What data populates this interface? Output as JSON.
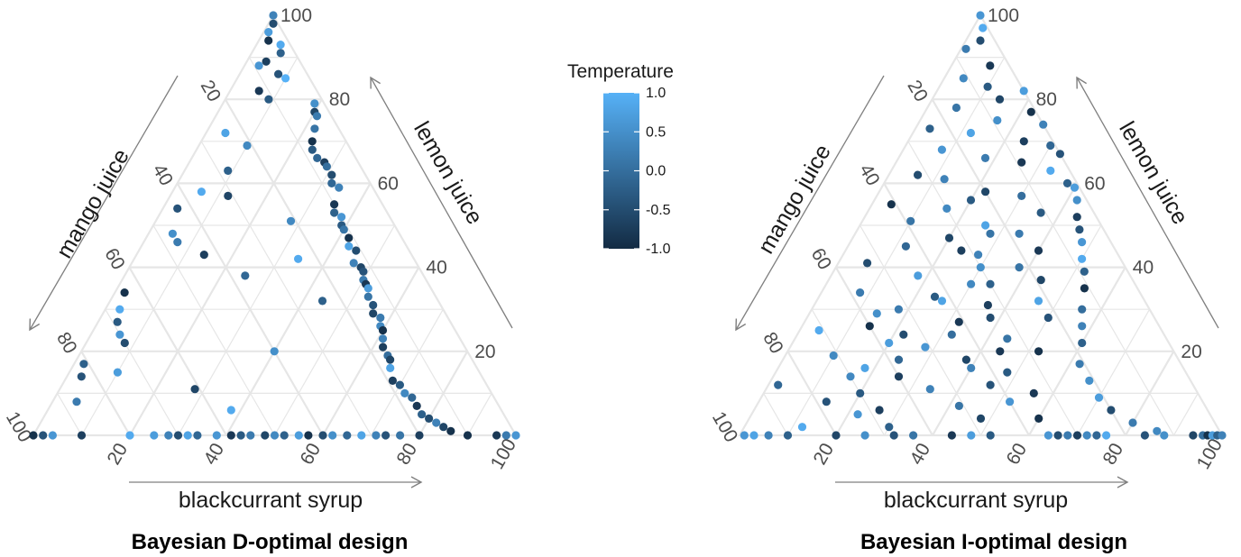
{
  "chart_data": [
    {
      "type": "ternary-scatter",
      "title": "Bayesian D-optimal design",
      "axes": {
        "top": "lemon juice",
        "left": "mango juice",
        "right": "blackcurrant syrup"
      },
      "tick_labels": [
        "20",
        "40",
        "60",
        "80",
        "100"
      ],
      "point_fields": [
        "lemon juice",
        "blackcurrant syrup",
        "temperature"
      ],
      "points": [
        [
          100,
          0,
          0.3
        ],
        [
          98,
          1,
          -0.5
        ],
        [
          96,
          1,
          0.7
        ],
        [
          94,
          2,
          -0.9
        ],
        [
          93,
          5,
          0.9
        ],
        [
          91,
          6,
          -0.2
        ],
        [
          89,
          4,
          -0.7
        ],
        [
          88,
          3,
          0.6
        ],
        [
          86,
          8,
          -0.4
        ],
        [
          85,
          10,
          1.0
        ],
        [
          82,
          6,
          -0.8
        ],
        [
          80,
          9,
          -0.3
        ],
        [
          79,
          19,
          0.5
        ],
        [
          77,
          20,
          -0.6
        ],
        [
          76,
          21,
          0.2
        ],
        [
          73,
          22,
          0.1
        ],
        [
          72,
          4,
          0.8
        ],
        [
          70,
          23,
          -0.9
        ],
        [
          69,
          10,
          0.4
        ],
        [
          68,
          24,
          -0.3
        ],
        [
          66,
          26,
          -0.1
        ],
        [
          65,
          28,
          -0.7
        ],
        [
          64,
          29,
          0.0
        ],
        [
          63,
          9,
          -0.2
        ],
        [
          62,
          31,
          -0.5
        ],
        [
          60,
          32,
          -0.1
        ],
        [
          59,
          34,
          0.3
        ],
        [
          58,
          6,
          0.9
        ],
        [
          57,
          12,
          -0.6
        ],
        [
          55,
          35,
          -0.8
        ],
        [
          54,
          3,
          -0.4
        ],
        [
          53,
          36,
          -0.2
        ],
        [
          52,
          38,
          0.6
        ],
        [
          51,
          28,
          0.4
        ],
        [
          50,
          39,
          -0.3
        ],
        [
          49,
          40,
          0.1
        ],
        [
          48,
          5,
          0.5
        ],
        [
          47,
          42,
          -0.9
        ],
        [
          46,
          7,
          0.2
        ],
        [
          45,
          43,
          0.8
        ],
        [
          44,
          45,
          -0.5
        ],
        [
          43,
          14,
          -0.7
        ],
        [
          42,
          34,
          0.9
        ],
        [
          41,
          46,
          0.3
        ],
        [
          40,
          48,
          -0.6
        ],
        [
          39,
          49,
          -0.4
        ],
        [
          38,
          25,
          -0.1
        ],
        [
          37,
          50,
          0.2
        ],
        [
          36,
          51,
          -0.8
        ],
        [
          35,
          52,
          0.7
        ],
        [
          34,
          2,
          -0.9
        ],
        [
          33,
          53,
          0.1
        ],
        [
          32,
          44,
          -0.2
        ],
        [
          31,
          55,
          -0.4
        ],
        [
          30,
          3,
          0.9
        ],
        [
          29,
          56,
          -0.6
        ],
        [
          28,
          58,
          0.2
        ],
        [
          27,
          4,
          -0.3
        ],
        [
          26,
          59,
          0.4
        ],
        [
          25,
          60,
          -0.9
        ],
        [
          24,
          6,
          0.6
        ],
        [
          23,
          61,
          0.3
        ],
        [
          22,
          8,
          -0.5
        ],
        [
          21,
          62,
          -0.7
        ],
        [
          20,
          40,
          0.5
        ],
        [
          19,
          64,
          0.0
        ],
        [
          18,
          65,
          -0.6
        ],
        [
          17,
          2,
          -0.2
        ],
        [
          16,
          66,
          0.8
        ],
        [
          15,
          10,
          0.7
        ],
        [
          14,
          3,
          -0.4
        ],
        [
          13,
          68,
          -0.7
        ],
        [
          12,
          70,
          -0.3
        ],
        [
          11,
          28,
          -0.6
        ],
        [
          10,
          72,
          0.4
        ],
        [
          9,
          74,
          -0.1
        ],
        [
          8,
          5,
          0.2
        ],
        [
          7,
          76,
          -0.8
        ],
        [
          6,
          38,
          0.9
        ],
        [
          5,
          78,
          -0.2
        ],
        [
          4,
          80,
          -0.5
        ],
        [
          3,
          82,
          0.3
        ],
        [
          2,
          84,
          -0.6
        ],
        [
          1,
          86,
          -0.9
        ],
        [
          0,
          0,
          -0.9
        ],
        [
          0,
          2,
          -0.4
        ],
        [
          0,
          4,
          0.6
        ],
        [
          0,
          10,
          -0.7
        ],
        [
          0,
          20,
          0.9
        ],
        [
          0,
          25,
          0.7
        ],
        [
          0,
          28,
          0.3
        ],
        [
          0,
          30,
          -0.5
        ],
        [
          0,
          32,
          0.8
        ],
        [
          0,
          34,
          -0.1
        ],
        [
          0,
          38,
          0.6
        ],
        [
          0,
          41,
          -0.8
        ],
        [
          0,
          43,
          -0.3
        ],
        [
          0,
          45,
          0.2
        ],
        [
          0,
          48,
          -0.6
        ],
        [
          0,
          50,
          0.4
        ],
        [
          0,
          52,
          -0.2
        ],
        [
          0,
          55,
          0.7
        ],
        [
          0,
          57,
          -0.9
        ],
        [
          0,
          60,
          -0.5
        ],
        [
          0,
          62,
          0.5
        ],
        [
          0,
          65,
          -0.1
        ],
        [
          0,
          68,
          0.8
        ],
        [
          0,
          71,
          0.3
        ],
        [
          0,
          73,
          -0.4
        ],
        [
          0,
          76,
          0.1
        ],
        [
          0,
          80,
          -0.7
        ],
        [
          0,
          90,
          -0.9
        ],
        [
          0,
          96,
          -0.8
        ],
        [
          0,
          98,
          0.2
        ],
        [
          0,
          100,
          0.6
        ]
      ]
    },
    {
      "type": "ternary-scatter",
      "title": "Bayesian I-optimal design",
      "axes": {
        "top": "lemon juice",
        "left": "mango juice",
        "right": "blackcurrant syrup"
      },
      "tick_labels": [
        "20",
        "40",
        "60",
        "80",
        "100"
      ],
      "point_fields": [
        "lemon juice",
        "blackcurrant syrup",
        "temperature"
      ],
      "points": [
        [
          100,
          0,
          0.6
        ],
        [
          97,
          2,
          0.9
        ],
        [
          94,
          3,
          -0.5
        ],
        [
          92,
          1,
          0.2
        ],
        [
          88,
          8,
          -0.8
        ],
        [
          85,
          4,
          0.4
        ],
        [
          83,
          10,
          -0.3
        ],
        [
          82,
          18,
          0.7
        ],
        [
          80,
          14,
          -0.6
        ],
        [
          78,
          6,
          0.1
        ],
        [
          77,
          22,
          -0.9
        ],
        [
          75,
          16,
          0.5
        ],
        [
          74,
          28,
          0.3
        ],
        [
          73,
          3,
          -0.2
        ],
        [
          72,
          12,
          0.8
        ],
        [
          70,
          24,
          -0.7
        ],
        [
          69,
          30,
          -0.1
        ],
        [
          68,
          8,
          0.6
        ],
        [
          67,
          35,
          -0.4
        ],
        [
          66,
          18,
          0.2
        ],
        [
          65,
          26,
          -0.8
        ],
        [
          63,
          33,
          0.9
        ],
        [
          62,
          6,
          -0.5
        ],
        [
          61,
          12,
          0.3
        ],
        [
          60,
          38,
          -0.2
        ],
        [
          59,
          40,
          0.7
        ],
        [
          58,
          22,
          -0.6
        ],
        [
          57,
          30,
          0.0
        ],
        [
          56,
          42,
          0.5
        ],
        [
          55,
          4,
          -0.9
        ],
        [
          54,
          16,
          0.4
        ],
        [
          53,
          36,
          -0.3
        ],
        [
          52,
          44,
          -0.7
        ],
        [
          51,
          10,
          0.1
        ],
        [
          50,
          26,
          0.8
        ],
        [
          49,
          46,
          -0.4
        ],
        [
          48,
          34,
          0.2
        ],
        [
          47,
          20,
          -0.6
        ],
        [
          46,
          48,
          0.6
        ],
        [
          45,
          12,
          -0.1
        ],
        [
          44,
          40,
          -0.8
        ],
        [
          43,
          28,
          0.3
        ],
        [
          42,
          50,
          0.9
        ],
        [
          41,
          6,
          -0.5
        ],
        [
          40,
          38,
          0.1
        ],
        [
          39,
          52,
          -0.2
        ],
        [
          38,
          18,
          0.7
        ],
        [
          37,
          44,
          -0.6
        ],
        [
          36,
          30,
          0.4
        ],
        [
          35,
          54,
          -0.9
        ],
        [
          34,
          8,
          0.2
        ],
        [
          33,
          24,
          -0.3
        ],
        [
          32,
          46,
          0.8
        ],
        [
          31,
          36,
          -0.7
        ],
        [
          30,
          56,
          0.0
        ],
        [
          29,
          14,
          0.5
        ],
        [
          28,
          50,
          -0.4
        ],
        [
          27,
          32,
          -0.8
        ],
        [
          26,
          58,
          0.3
        ],
        [
          25,
          4,
          0.9
        ],
        [
          24,
          22,
          -0.5
        ],
        [
          23,
          44,
          0.1
        ],
        [
          22,
          60,
          -0.2
        ],
        [
          21,
          28,
          0.6
        ],
        [
          20,
          52,
          -0.9
        ],
        [
          19,
          10,
          0.4
        ],
        [
          18,
          38,
          -0.6
        ],
        [
          17,
          62,
          0.2
        ],
        [
          16,
          18,
          0.8
        ],
        [
          15,
          48,
          -0.3
        ],
        [
          14,
          26,
          -0.7
        ],
        [
          13,
          66,
          0.5
        ],
        [
          12,
          2,
          -0.1
        ],
        [
          11,
          34,
          0.3
        ],
        [
          10,
          56,
          -0.8
        ],
        [
          9,
          70,
          0.7
        ],
        [
          8,
          14,
          -0.4
        ],
        [
          7,
          42,
          0.1
        ],
        [
          6,
          74,
          -0.5
        ],
        [
          5,
          22,
          0.6
        ],
        [
          4,
          60,
          -0.9
        ],
        [
          3,
          80,
          0.2
        ],
        [
          2,
          30,
          -0.2
        ],
        [
          1,
          86,
          0.4
        ],
        [
          56,
          20,
          -0.3
        ],
        [
          48,
          28,
          0.1
        ],
        [
          44,
          24,
          -0.7
        ],
        [
          40,
          30,
          0.5
        ],
        [
          36,
          34,
          -0.2
        ],
        [
          32,
          26,
          0.8
        ],
        [
          28,
          38,
          -0.5
        ],
        [
          24,
          32,
          0.0
        ],
        [
          20,
          44,
          -0.8
        ],
        [
          16,
          40,
          0.3
        ],
        [
          12,
          46,
          -0.4
        ],
        [
          8,
          52,
          0.6
        ],
        [
          4,
          48,
          -0.6
        ],
        [
          30,
          18,
          0.2
        ],
        [
          26,
          14,
          -0.9
        ],
        [
          22,
          20,
          0.7
        ],
        [
          18,
          24,
          -0.1
        ],
        [
          14,
          16,
          0.4
        ],
        [
          10,
          20,
          -0.3
        ],
        [
          6,
          26,
          -0.7
        ],
        [
          2,
          12,
          0.9
        ],
        [
          0,
          1,
          0.6
        ],
        [
          0,
          3,
          0.8
        ],
        [
          0,
          6,
          0.3
        ],
        [
          0,
          10,
          -0.2
        ],
        [
          0,
          20,
          -0.6
        ],
        [
          0,
          26,
          0.5
        ],
        [
          0,
          32,
          -0.4
        ],
        [
          0,
          36,
          0.1
        ],
        [
          0,
          44,
          -0.8
        ],
        [
          0,
          48,
          0.7
        ],
        [
          0,
          52,
          -0.3
        ],
        [
          0,
          64,
          0.6
        ],
        [
          0,
          66,
          -0.5
        ],
        [
          0,
          68,
          0.2
        ],
        [
          0,
          70,
          -0.7
        ],
        [
          0,
          72,
          0.4
        ],
        [
          0,
          74,
          -0.1
        ],
        [
          0,
          76,
          0.9
        ],
        [
          0,
          84,
          -0.4
        ],
        [
          0,
          88,
          0.5
        ],
        [
          0,
          94,
          -0.6
        ],
        [
          0,
          96,
          0.0
        ],
        [
          0,
          97,
          -0.9
        ],
        [
          0,
          98,
          0.7
        ],
        [
          0,
          99,
          -0.2
        ],
        [
          0,
          100,
          0.3
        ]
      ]
    }
  ],
  "legend": {
    "title": "Temperature",
    "ticks": [
      {
        "label": "1.0",
        "value": 1.0
      },
      {
        "label": "0.5",
        "value": 0.5
      },
      {
        "label": "0.0",
        "value": 0.0
      },
      {
        "label": "-0.5",
        "value": -0.5
      },
      {
        "label": "-1.0",
        "value": -1.0
      }
    ],
    "low_color": "#132b43",
    "high_color": "#56b1f7"
  }
}
